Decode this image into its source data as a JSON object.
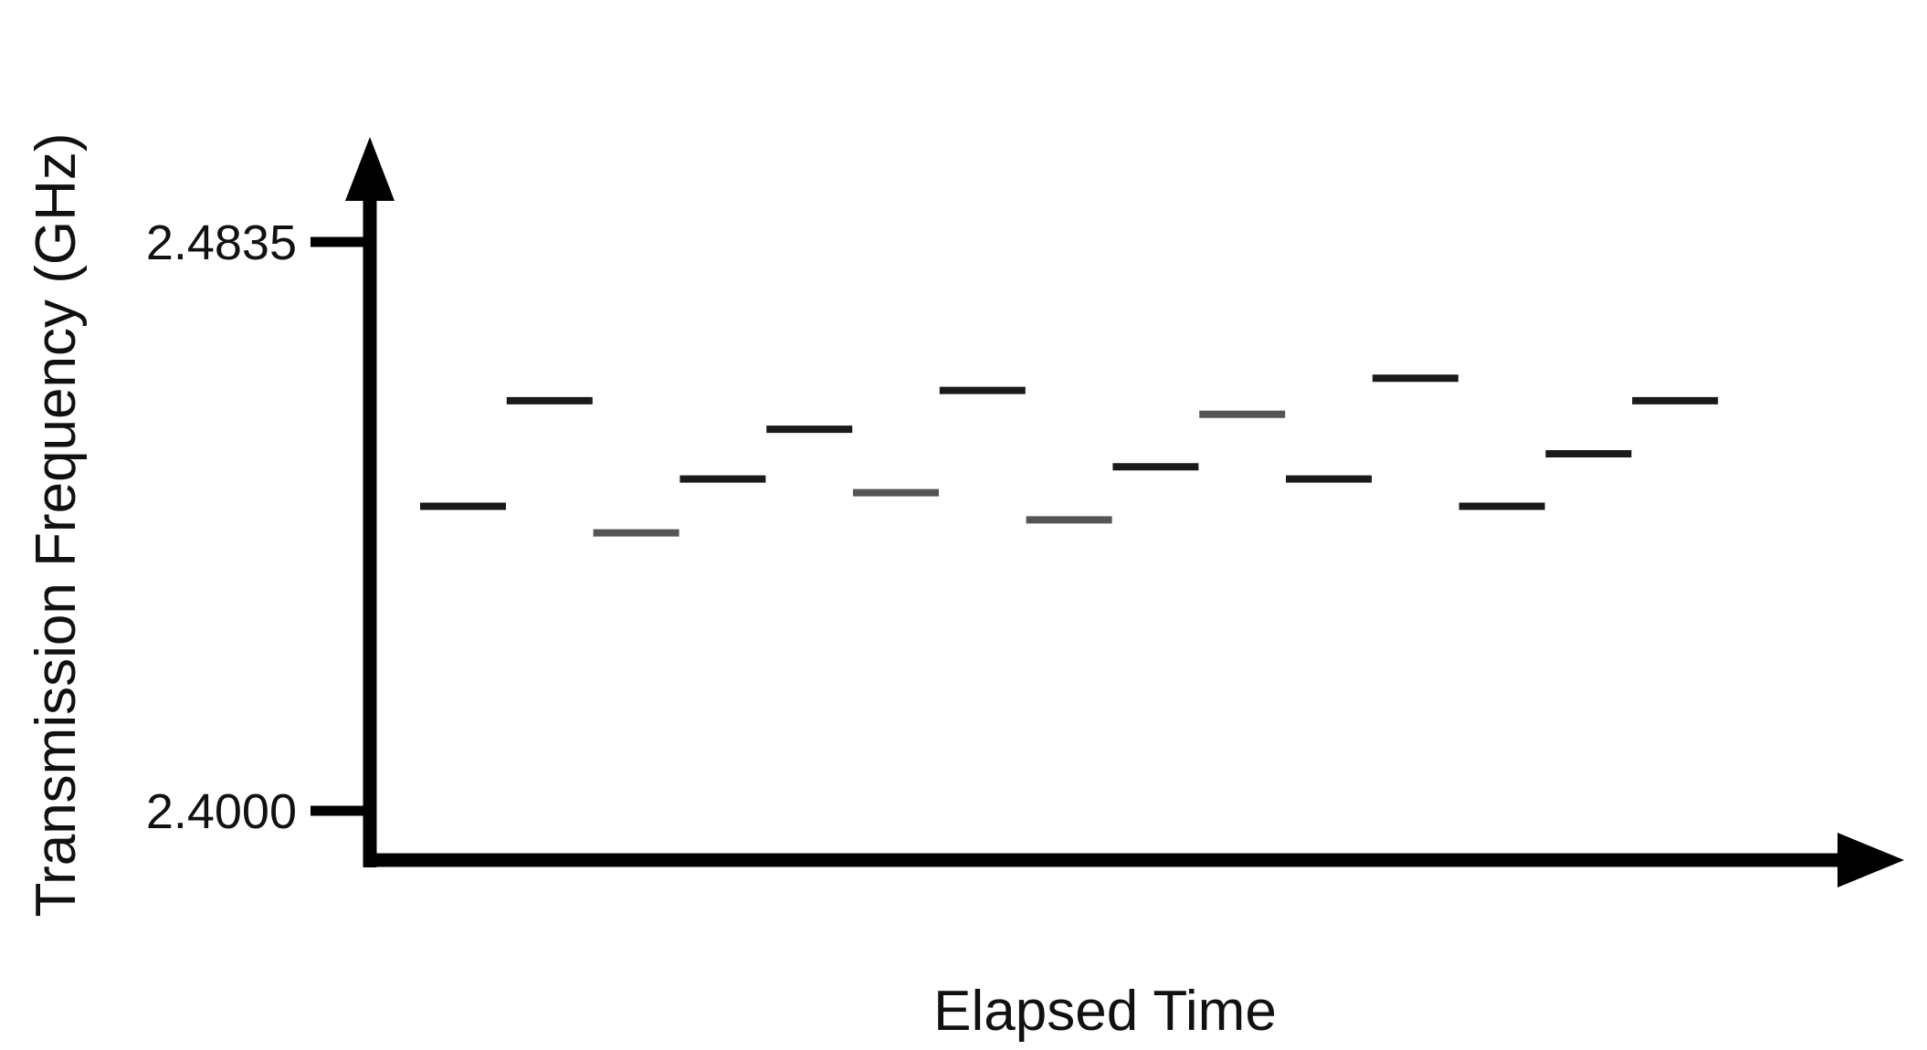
{
  "chart_data": {
    "type": "scatter",
    "title": "",
    "xlabel": "Elapsed Time",
    "ylabel": "Transmission Frequency (GHz)",
    "ylim": [
      2.4,
      2.4835
    ],
    "yticks": [
      "2.4835",
      "2.4000"
    ],
    "grid": false,
    "legend": "none",
    "segment_color": "#1a1a1a",
    "faded_color": "#555555",
    "hops": [
      {
        "slot": 1,
        "frequency": 2.4447
      },
      {
        "slot": 2,
        "frequency": 2.4602
      },
      {
        "slot": 3,
        "frequency": 2.4408
      },
      {
        "slot": 4,
        "frequency": 2.4487
      },
      {
        "slot": 5,
        "frequency": 2.456
      },
      {
        "slot": 6,
        "frequency": 2.4467
      },
      {
        "slot": 7,
        "frequency": 2.4617
      },
      {
        "slot": 8,
        "frequency": 2.4427
      },
      {
        "slot": 9,
        "frequency": 2.4505
      },
      {
        "slot": 10,
        "frequency": 2.4582
      },
      {
        "slot": 11,
        "frequency": 2.4487
      },
      {
        "slot": 12,
        "frequency": 2.4635
      },
      {
        "slot": 13,
        "frequency": 2.4447
      },
      {
        "slot": 14,
        "frequency": 2.4524
      },
      {
        "slot": 15,
        "frequency": 2.4602
      }
    ]
  }
}
